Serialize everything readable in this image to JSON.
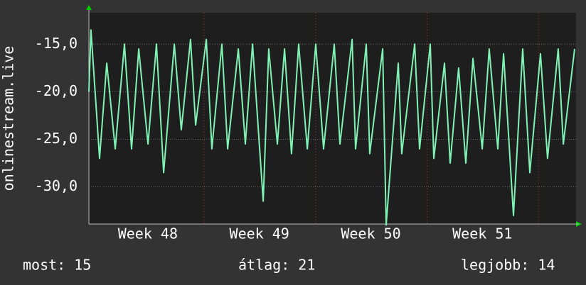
{
  "chart_data": {
    "type": "line",
    "y_label": "onlinestream.live",
    "x": [
      0,
      0.13,
      0.67,
      1.12,
      1.65,
      2.23,
      2.68,
      3.13,
      3.71,
      4.24,
      4.69,
      5.36,
      5.8,
      6.38,
      6.7,
      7.37,
      7.72,
      8.35,
      8.71,
      9.38,
      9.82,
      10.27,
      10.94,
      11.29,
      11.83,
      12.28,
      12.72,
      13.17,
      13.71,
      14.24,
      14.73,
      15.4,
      15.76,
      16.52,
      16.74,
      17.41,
      17.63,
      18.44,
      18.66,
      19.42,
      19.64,
      20.45,
      20.76,
      21.43,
      21.65,
      22.32,
      22.68,
      23.21,
      23.66,
      24.11,
      24.69,
      25.13,
      25.67,
      26.03,
      26.65,
      27.23,
      27.68,
      28.35,
      28.79,
      29.46,
      29.78,
      30.49
    ],
    "series": [
      {
        "name": "onlinestream.live",
        "color": "#80f2b4",
        "values": [
          -20,
          -13.5,
          -27,
          -17,
          -26,
          -15,
          -26,
          -15.5,
          -25.5,
          -15,
          -28.5,
          -15,
          -24,
          -14.5,
          -23.5,
          -14.5,
          -26,
          -15,
          -26,
          -15.5,
          -25.5,
          -15,
          -31.5,
          -15.5,
          -25.5,
          -15.5,
          -26.5,
          -15,
          -26,
          -15,
          -26,
          -15,
          -25.5,
          -14.5,
          -26,
          -15,
          -26.5,
          -15.5,
          -34,
          -17,
          -26.5,
          -15,
          -26,
          -15,
          -27,
          -17,
          -27.5,
          -17.5,
          -27.5,
          -16.5,
          -26,
          -15.5,
          -26,
          -16,
          -33,
          -15.5,
          -28.5,
          -16,
          -27,
          -15.5,
          -25.5,
          -15.5
        ]
      }
    ],
    "xlim": [
      0,
      30.58
    ],
    "xticks": [
      {
        "value": 3.7,
        "label": "Week 48"
      },
      {
        "value": 10.7,
        "label": "Week 49"
      },
      {
        "value": 17.7,
        "label": "Week 50"
      },
      {
        "value": 24.7,
        "label": "Week 51"
      }
    ],
    "ylim": [
      -33.9,
      -11.7
    ],
    "yticks": [
      {
        "value": -30,
        "label": "-30,0"
      },
      {
        "value": -25,
        "label": "-25,0"
      },
      {
        "value": -20,
        "label": "-20,0"
      },
      {
        "value": -15,
        "label": "-15,0"
      }
    ],
    "grid": true,
    "footer": [
      "most: 15",
      "átlag: 21",
      "legjobb: 14"
    ]
  }
}
